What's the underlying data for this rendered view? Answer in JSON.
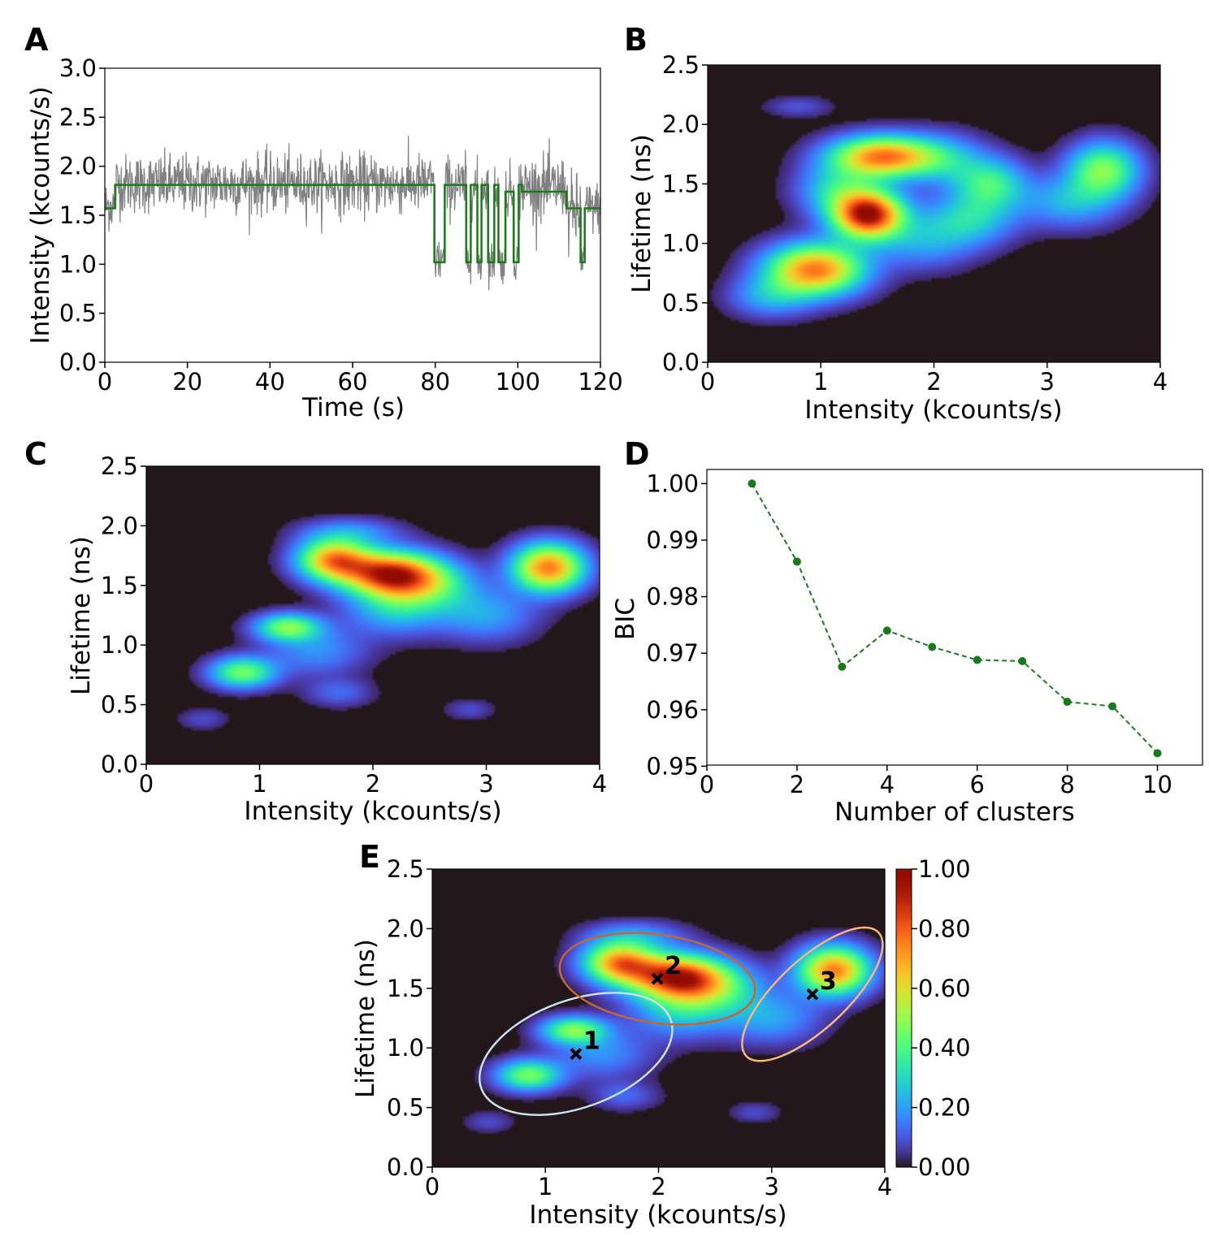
{
  "colors": {
    "trace": "#808080",
    "step": "#1a7a1a",
    "bic": "#1a7a1a",
    "background": "#30123b",
    "ellipse1": "#c8e0f0",
    "ellipse2": "#c06838",
    "ellipse3": "#f5b880",
    "axis": "#000000"
  },
  "chart_data": [
    {
      "panel": "A",
      "type": "line",
      "xlabel": "Time (s)",
      "ylabel": "Intensity (kcounts/s)",
      "xlim": [
        0,
        120
      ],
      "ylim": [
        0,
        3.0
      ],
      "xticks": [
        "0",
        "20",
        "40",
        "60",
        "80",
        "100",
        "120"
      ],
      "yticks": [
        "0.0",
        "0.5",
        "1.0",
        "1.5",
        "2.0",
        "2.5",
        "3.0"
      ],
      "series": [
        {
          "name": "intensity trace",
          "color": "#808080",
          "description": "noisy binned intensity, mean ~1.8 until 80 s then switching",
          "segments": [
            {
              "t0": 0,
              "t1": 2.5,
              "mean": 1.6,
              "sd": 0.13
            },
            {
              "t0": 2.5,
              "t1": 79.8,
              "mean": 1.82,
              "sd": 0.15
            },
            {
              "t0": 79.8,
              "t1": 82.3,
              "mean": 1.05,
              "sd": 0.12
            },
            {
              "t0": 82.3,
              "t1": 87.5,
              "mean": 1.8,
              "sd": 0.15
            },
            {
              "t0": 87.5,
              "t1": 88.6,
              "mean": 1.02,
              "sd": 0.1
            },
            {
              "t0": 88.6,
              "t1": 90.2,
              "mean": 1.78,
              "sd": 0.14
            },
            {
              "t0": 90.2,
              "t1": 91.2,
              "mean": 1.0,
              "sd": 0.1
            },
            {
              "t0": 91.2,
              "t1": 92.8,
              "mean": 1.8,
              "sd": 0.14
            },
            {
              "t0": 92.8,
              "t1": 94.3,
              "mean": 1.02,
              "sd": 0.1
            },
            {
              "t0": 94.3,
              "t1": 95.3,
              "mean": 1.78,
              "sd": 0.14
            },
            {
              "t0": 95.3,
              "t1": 97.0,
              "mean": 1.02,
              "sd": 0.1
            },
            {
              "t0": 97.0,
              "t1": 99.0,
              "mean": 1.75,
              "sd": 0.14
            },
            {
              "t0": 99.0,
              "t1": 100.2,
              "mean": 1.05,
              "sd": 0.1
            },
            {
              "t0": 100.2,
              "t1": 111.8,
              "mean": 1.78,
              "sd": 0.16
            },
            {
              "t0": 111.8,
              "t1": 115.2,
              "mean": 1.52,
              "sd": 0.2
            },
            {
              "t0": 115.2,
              "t1": 116.2,
              "mean": 1.05,
              "sd": 0.1
            },
            {
              "t0": 116.2,
              "t1": 120,
              "mean": 1.58,
              "sd": 0.13
            }
          ]
        },
        {
          "name": "change-point levels",
          "color": "#1a7a1a",
          "steps": [
            [
              0,
              1.57
            ],
            [
              2.5,
              1.81
            ],
            [
              79.8,
              1.02
            ],
            [
              82.3,
              1.81
            ],
            [
              87.5,
              1.02
            ],
            [
              88.6,
              1.81
            ],
            [
              90.2,
              1.02
            ],
            [
              91.2,
              1.81
            ],
            [
              92.8,
              1.02
            ],
            [
              94.3,
              1.81
            ],
            [
              95.3,
              1.02
            ],
            [
              97.0,
              1.74
            ],
            [
              99.0,
              1.02
            ],
            [
              100.2,
              1.81
            ],
            [
              101.0,
              1.74
            ],
            [
              111.8,
              1.57
            ],
            [
              115.2,
              1.02
            ],
            [
              116.2,
              1.57
            ],
            [
              120,
              1.57
            ]
          ]
        }
      ]
    },
    {
      "panel": "B",
      "type": "heatmap",
      "xlabel": "Intensity (kcounts/s)",
      "ylabel": "Lifetime (ns)",
      "xlim": [
        0,
        4
      ],
      "ylim": [
        0,
        2.5
      ],
      "xticks": [
        "0",
        "1",
        "2",
        "3",
        "4"
      ],
      "yticks": [
        "0.0",
        "0.5",
        "1.0",
        "1.5",
        "2.0",
        "2.5"
      ],
      "peaks": [
        {
          "x": 1.42,
          "y": 1.24,
          "amp": 1.0,
          "sx": 0.22,
          "sy": 0.14
        },
        {
          "x": 1.55,
          "y": 1.73,
          "amp": 0.82,
          "sx": 0.32,
          "sy": 0.12
        },
        {
          "x": 0.95,
          "y": 0.78,
          "amp": 0.82,
          "sx": 0.3,
          "sy": 0.15
        },
        {
          "x": 0.55,
          "y": 0.55,
          "amp": 0.22,
          "sx": 0.25,
          "sy": 0.12
        },
        {
          "x": 1.15,
          "y": 1.45,
          "amp": 0.3,
          "sx": 0.25,
          "sy": 0.15
        },
        {
          "x": 2.5,
          "y": 1.5,
          "amp": 0.38,
          "sx": 0.22,
          "sy": 0.15
        },
        {
          "x": 2.3,
          "y": 1.2,
          "amp": 0.3,
          "sx": 0.28,
          "sy": 0.15
        },
        {
          "x": 2.1,
          "y": 1.7,
          "amp": 0.22,
          "sx": 0.25,
          "sy": 0.15
        },
        {
          "x": 1.9,
          "y": 1.0,
          "amp": 0.2,
          "sx": 0.3,
          "sy": 0.15
        },
        {
          "x": 3.5,
          "y": 1.62,
          "amp": 0.5,
          "sx": 0.22,
          "sy": 0.16
        },
        {
          "x": 3.2,
          "y": 1.35,
          "amp": 0.25,
          "sx": 0.3,
          "sy": 0.15
        },
        {
          "x": 0.8,
          "y": 2.15,
          "amp": 0.1,
          "sx": 0.2,
          "sy": 0.06
        }
      ]
    },
    {
      "panel": "C",
      "type": "heatmap",
      "xlabel": "Intensity (kcounts/s)",
      "ylabel": "Lifetime (ns)",
      "xlim": [
        0,
        4
      ],
      "ylim": [
        0,
        2.5
      ],
      "xticks": [
        "0",
        "1",
        "2",
        "3",
        "4"
      ],
      "yticks": [
        "0.0",
        "0.5",
        "1.0",
        "1.5",
        "2.0",
        "2.5"
      ],
      "peaks": [
        {
          "x": 2.15,
          "y": 1.6,
          "amp": 1.0,
          "sx": 0.3,
          "sy": 0.13
        },
        {
          "x": 1.65,
          "y": 1.72,
          "amp": 0.82,
          "sx": 0.22,
          "sy": 0.12
        },
        {
          "x": 3.55,
          "y": 1.65,
          "amp": 0.92,
          "sx": 0.22,
          "sy": 0.14
        },
        {
          "x": 1.25,
          "y": 1.15,
          "amp": 0.55,
          "sx": 0.2,
          "sy": 0.08
        },
        {
          "x": 0.85,
          "y": 0.77,
          "amp": 0.55,
          "sx": 0.2,
          "sy": 0.09
        },
        {
          "x": 2.5,
          "y": 1.5,
          "amp": 0.35,
          "sx": 0.3,
          "sy": 0.14
        },
        {
          "x": 2.2,
          "y": 1.3,
          "amp": 0.3,
          "sx": 0.3,
          "sy": 0.15
        },
        {
          "x": 3.0,
          "y": 1.25,
          "amp": 0.25,
          "sx": 0.3,
          "sy": 0.15
        },
        {
          "x": 1.5,
          "y": 0.95,
          "amp": 0.22,
          "sx": 0.3,
          "sy": 0.14
        },
        {
          "x": 1.8,
          "y": 1.95,
          "amp": 0.2,
          "sx": 0.3,
          "sy": 0.08
        },
        {
          "x": 0.5,
          "y": 0.38,
          "amp": 0.1,
          "sx": 0.15,
          "sy": 0.06
        },
        {
          "x": 2.85,
          "y": 0.46,
          "amp": 0.1,
          "sx": 0.15,
          "sy": 0.06
        },
        {
          "x": 1.7,
          "y": 0.6,
          "amp": 0.15,
          "sx": 0.2,
          "sy": 0.08
        }
      ]
    },
    {
      "panel": "D",
      "type": "line",
      "xlabel": "Number of clusters",
      "ylabel": "BIC",
      "xlim": [
        0,
        11
      ],
      "ylim": [
        0.9502,
        1.0025
      ],
      "xticks": [
        "0",
        "2",
        "4",
        "6",
        "8",
        "10"
      ],
      "yticks": [
        "0.95",
        "0.96",
        "0.97",
        "0.98",
        "0.99",
        "1.00"
      ],
      "x": [
        1,
        2,
        3,
        4,
        5,
        6,
        7,
        8,
        9,
        10
      ],
      "values": [
        1.0,
        0.9862,
        0.9676,
        0.974,
        0.9711,
        0.9688,
        0.9686,
        0.9614,
        0.9606,
        0.9523
      ],
      "color": "#1a7a1a",
      "style": "dashed line with circle markers"
    },
    {
      "panel": "E",
      "type": "heatmap",
      "xlabel": "Intensity (kcounts/s)",
      "ylabel": "Lifetime (ns)",
      "xlim": [
        0,
        4
      ],
      "ylim": [
        0,
        2.5
      ],
      "xticks": [
        "0",
        "1",
        "2",
        "3",
        "4"
      ],
      "yticks": [
        "0.0",
        "0.5",
        "1.0",
        "1.5",
        "2.0",
        "2.5"
      ],
      "colorbar": {
        "min": 0,
        "max": 1,
        "ticks": [
          "0.00",
          "0.20",
          "0.40",
          "0.60",
          "0.80",
          "1.00"
        ]
      },
      "clusters": [
        {
          "label": "1",
          "x": 1.27,
          "y": 0.95,
          "w": 1.78,
          "h": 0.9,
          "angle": 20,
          "color": "#c8e0f0"
        },
        {
          "label": "2",
          "x": 1.99,
          "y": 1.58,
          "w": 1.74,
          "h": 0.74,
          "angle": -8,
          "color": "#c06838"
        },
        {
          "label": "3",
          "x": 3.36,
          "y": 1.45,
          "w": 1.6,
          "h": 0.58,
          "angle": 43,
          "color": "#f5b880"
        }
      ]
    }
  ],
  "panels": [
    {
      "letter": "A"
    },
    {
      "letter": "B"
    },
    {
      "letter": "C"
    },
    {
      "letter": "D"
    },
    {
      "letter": "E"
    }
  ]
}
